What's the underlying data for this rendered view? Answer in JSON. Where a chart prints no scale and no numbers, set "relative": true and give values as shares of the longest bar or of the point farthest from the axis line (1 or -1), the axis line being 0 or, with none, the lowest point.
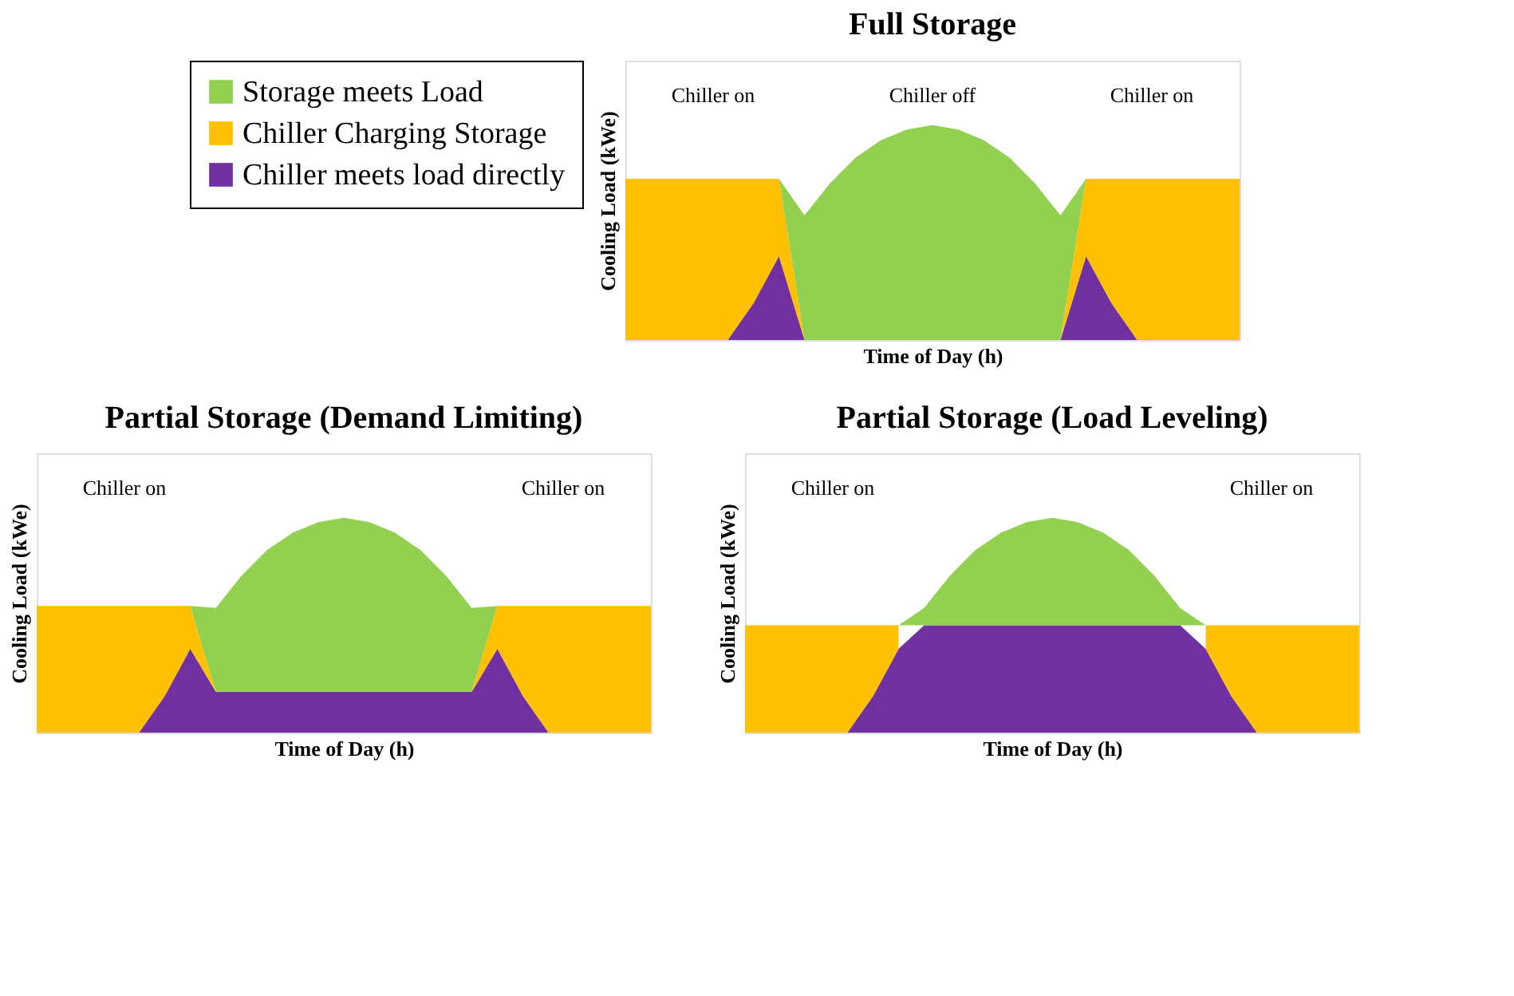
{
  "chart_data": [
    {
      "type": "area",
      "title": "Full Storage",
      "xlabel": "Time of Day (h)",
      "ylabel": "Cooling Load (kWe)",
      "relative": true,
      "stacked": true,
      "legend": "left",
      "tick_labels": false,
      "annotations": [
        "Chiller on",
        "Chiller off",
        "Chiller on"
      ],
      "categories": [
        null,
        null,
        null,
        null,
        null,
        null,
        null,
        null,
        null,
        null,
        null,
        null,
        null,
        null,
        null,
        null,
        null,
        null,
        null,
        null,
        null,
        null,
        null,
        null,
        null
      ],
      "series": [
        {
          "name": "Chiller meets load directly",
          "color": "#7030a0",
          "values": [
            0,
            0,
            0,
            0,
            0,
            0.17,
            0.39,
            0,
            0,
            0,
            0,
            0,
            0,
            0,
            0,
            0,
            0,
            0,
            0.39,
            0.17,
            0,
            0,
            0,
            0,
            0
          ]
        },
        {
          "name": "Chiller Charging Storage",
          "color": "#ffc000",
          "values": [
            0.75,
            0.75,
            0.75,
            0.75,
            0.75,
            0.58,
            0.36,
            0,
            0,
            0,
            0,
            0,
            0,
            0,
            0,
            0,
            0,
            0,
            0.36,
            0.58,
            0.75,
            0.75,
            0.75,
            0.75,
            0.75
          ]
        },
        {
          "name": "Storage meets Load",
          "color": "#92d050",
          "values": [
            0,
            0,
            0,
            0,
            0,
            0,
            0,
            0.58,
            0.73,
            0.85,
            0.93,
            0.98,
            1,
            0.98,
            0.93,
            0.85,
            0.73,
            0.58,
            0,
            0,
            0,
            0,
            0,
            0,
            0
          ]
        }
      ]
    },
    {
      "type": "area",
      "title": "Partial Storage (Demand Limiting)",
      "xlabel": "Time of Day (h)",
      "ylabel": "Cooling Load (kWe)",
      "relative": true,
      "stacked": true,
      "tick_labels": false,
      "annotations": [
        "Chiller on",
        "Chiller on"
      ],
      "categories": [
        null,
        null,
        null,
        null,
        null,
        null,
        null,
        null,
        null,
        null,
        null,
        null,
        null,
        null,
        null,
        null,
        null,
        null,
        null,
        null,
        null,
        null,
        null,
        null,
        null
      ],
      "series": [
        {
          "color": "#7030a0",
          "values": [
            0,
            0,
            0,
            0,
            0,
            0.17,
            0.39,
            0.19,
            0.19,
            0.19,
            0.19,
            0.19,
            0.19,
            0.19,
            0.19,
            0.19,
            0.19,
            0.19,
            0.39,
            0.17,
            0,
            0,
            0,
            0,
            0
          ]
        },
        {
          "color": "#ffc000",
          "values": [
            0.59,
            0.59,
            0.59,
            0.59,
            0.59,
            0.42,
            0.2,
            0,
            0,
            0,
            0,
            0,
            0,
            0,
            0,
            0,
            0,
            0,
            0.2,
            0.42,
            0.59,
            0.59,
            0.59,
            0.59,
            0.59
          ]
        },
        {
          "color": "#92d050",
          "values": [
            0,
            0,
            0,
            0,
            0,
            0,
            0,
            0.39,
            0.54,
            0.66,
            0.74,
            0.79,
            0.81,
            0.79,
            0.74,
            0.66,
            0.54,
            0.39,
            0,
            0,
            0,
            0,
            0,
            0,
            0
          ]
        }
      ]
    },
    {
      "type": "area",
      "title": "Partial Storage (Load Leveling)",
      "xlabel": "Time of Day (h)",
      "ylabel": "Cooling Load (kWe)",
      "relative": true,
      "stacked": true,
      "tick_labels": false,
      "annotations": [
        "Chiller on",
        "Chiller on"
      ],
      "categories": [
        null,
        null,
        null,
        null,
        null,
        null,
        null,
        null,
        null,
        null,
        null,
        null,
        null,
        null,
        null,
        null,
        null,
        null,
        null,
        null,
        null,
        null,
        null,
        null,
        null
      ],
      "series": [
        {
          "color": "#7030a0",
          "values": [
            0,
            0,
            0,
            0,
            0,
            0.17,
            0.39,
            0.5,
            0.5,
            0.5,
            0.5,
            0.5,
            0.5,
            0.5,
            0.5,
            0.5,
            0.5,
            0.5,
            0.39,
            0.17,
            0,
            0,
            0,
            0,
            0
          ]
        },
        {
          "color": "#ffc000",
          "values": [
            0.5,
            0.5,
            0.5,
            0.5,
            0.5,
            0.33,
            0.11,
            null,
            null,
            null,
            null,
            null,
            null,
            null,
            null,
            null,
            null,
            null,
            0.11,
            0.33,
            0.5,
            0.5,
            0.5,
            0.5,
            0.5
          ]
        },
        {
          "color": "#92d050",
          "values": [
            null,
            null,
            null,
            null,
            null,
            null,
            0,
            0.08,
            0.23,
            0.35,
            0.43,
            0.48,
            0.5,
            0.48,
            0.43,
            0.35,
            0.23,
            0.08,
            0,
            null,
            null,
            null,
            null,
            null,
            null
          ]
        }
      ]
    }
  ]
}
